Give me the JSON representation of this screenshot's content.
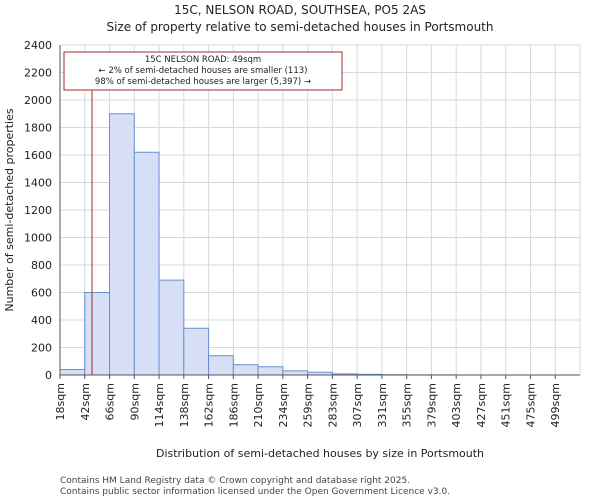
{
  "header": {
    "title_line1": "15C, NELSON ROAD, SOUTHSEA, PO5 2AS",
    "title_line2": "Size of property relative to semi-detached houses in Portsmouth"
  },
  "footer": {
    "line1": "Contains HM Land Registry data © Crown copyright and database right 2025.",
    "line2": "Contains public sector information licensed under the Open Government Licence v3.0."
  },
  "colors": {
    "bar_fill": "#d6dff5",
    "bar_stroke": "#6a8fcf",
    "marker": "#a52a2a",
    "grid": "#d9d9d9",
    "axis": "#555555"
  },
  "chart_data": {
    "type": "bar",
    "title": "Size of property relative to semi-detached houses in Portsmouth",
    "xlabel": "Distribution of semi-detached houses by size in Portsmouth",
    "ylabel": "Number of semi-detached properties",
    "ylim": [
      0,
      2400
    ],
    "yticks": [
      0,
      200,
      400,
      600,
      800,
      1000,
      1200,
      1400,
      1600,
      1800,
      2000,
      2200,
      2400
    ],
    "grid": true,
    "categories": [
      "18sqm",
      "42sqm",
      "66sqm",
      "90sqm",
      "114sqm",
      "138sqm",
      "162sqm",
      "186sqm",
      "210sqm",
      "234sqm",
      "259sqm",
      "283sqm",
      "307sqm",
      "331sqm",
      "355sqm",
      "379sqm",
      "403sqm",
      "427sqm",
      "451sqm",
      "475sqm",
      "499sqm"
    ],
    "values": [
      40,
      600,
      1900,
      1620,
      690,
      340,
      140,
      75,
      60,
      30,
      20,
      8,
      5,
      2,
      1,
      1,
      0,
      0,
      0,
      0,
      0
    ],
    "marker": {
      "value": 49,
      "label_line1": "15C NELSON ROAD: 49sqm",
      "label_line2": "← 2% of semi-detached houses are smaller (113)",
      "label_line3": "98% of semi-detached houses are larger (5,397) →"
    }
  }
}
